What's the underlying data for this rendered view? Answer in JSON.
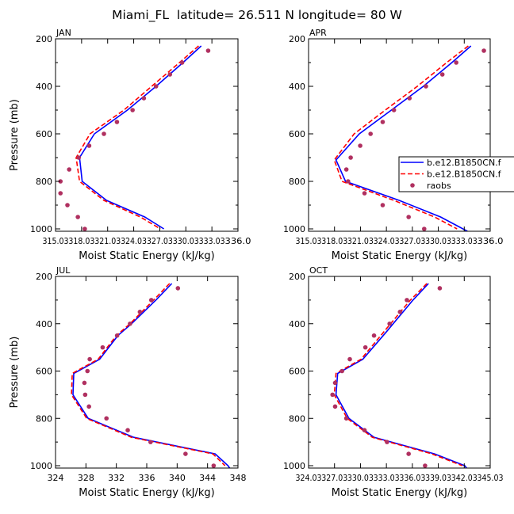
{
  "title": "Miami_FL  latitude= 26.511 N longitude= 80 W",
  "legend": {
    "entries": [
      {
        "label": "b.e12.B1850CN.f",
        "color": "#0000ff",
        "style": "solid"
      },
      {
        "label": "b.e12.B1850CN.f",
        "color": "#ff0000",
        "style": "dashed"
      },
      {
        "label": "raobs",
        "color": "#b03060",
        "style": "marker"
      }
    ]
  },
  "chart_data": [
    {
      "type": "line",
      "title": "JAN",
      "xlabel": "Moist Static Energy (kJ/kg)",
      "ylabel": "Pressure (mb)",
      "xlim": [
        315.03,
        336.03
      ],
      "ylim": [
        1010,
        200
      ],
      "xticks": [
        "315.03",
        "318.03",
        "321.03",
        "324.03",
        "327.03",
        "330.03",
        "333.03",
        "336.0"
      ],
      "yticks": [
        200,
        400,
        600,
        800,
        1000
      ],
      "series": [
        {
          "name": "b.e12.B1850CN.f",
          "color": "#0000ff",
          "dash": false,
          "pressure": [
            230,
            300,
            400,
            500,
            600,
            700,
            800,
            880,
            950,
            1000
          ],
          "values": [
            331.8,
            329.7,
            326.6,
            323.3,
            319.5,
            317.8,
            318.1,
            320.9,
            325.3,
            327.5
          ]
        },
        {
          "name": "b.e12.B1850CN.f",
          "color": "#ff0000",
          "dash": true,
          "pressure": [
            230,
            300,
            400,
            500,
            600,
            700,
            800,
            880,
            950,
            1000
          ],
          "values": [
            331.5,
            329.3,
            326.1,
            322.9,
            319.0,
            317.4,
            317.8,
            320.6,
            324.8,
            327.1
          ]
        },
        {
          "name": "raobs",
          "color": "#b03060",
          "marker": true,
          "pressure": [
            250,
            300,
            350,
            400,
            450,
            500,
            550,
            600,
            650,
            700,
            750,
            800,
            850,
            900,
            950,
            1000
          ],
          "values": [
            332.6,
            329.6,
            328.2,
            326.6,
            325.2,
            323.9,
            322.1,
            320.6,
            318.9,
            317.7,
            316.6,
            315.6,
            315.6,
            316.4,
            317.6,
            318.4
          ]
        }
      ]
    },
    {
      "type": "line",
      "title": "APR",
      "xlabel": "Moist Static Energy (kJ/kg)",
      "ylabel": "Pressure (mb)",
      "xlim": [
        315.03,
        336.03
      ],
      "ylim": [
        1010,
        200
      ],
      "xticks": [
        "315.03",
        "318.03",
        "321.03",
        "324.03",
        "327.03",
        "330.03",
        "333.03",
        "336.0"
      ],
      "yticks": [
        200,
        400,
        600,
        800,
        1000
      ],
      "series": [
        {
          "name": "b.e12.B1850CN.f",
          "color": "#0000ff",
          "dash": false,
          "pressure": [
            230,
            300,
            400,
            500,
            600,
            710,
            800,
            880,
            950,
            1010
          ],
          "values": [
            333.8,
            331.6,
            328.3,
            324.6,
            320.9,
            318.2,
            319.3,
            325.5,
            330.3,
            333.4
          ]
        },
        {
          "name": "b.e12.B1850CN.f",
          "color": "#ff0000",
          "dash": true,
          "pressure": [
            230,
            300,
            400,
            500,
            600,
            710,
            800,
            880,
            950,
            1000
          ],
          "values": [
            333.5,
            331.0,
            327.6,
            323.9,
            320.3,
            318.0,
            318.9,
            324.9,
            329.6,
            332.2
          ]
        },
        {
          "name": "raobs",
          "color": "#b03060",
          "marker": true,
          "pressure": [
            250,
            300,
            350,
            400,
            450,
            500,
            550,
            600,
            650,
            700,
            750,
            800,
            850,
            900,
            950,
            1000
          ],
          "values": [
            335.3,
            332.1,
            330.5,
            328.6,
            326.7,
            324.9,
            323.6,
            322.2,
            321.0,
            319.9,
            319.4,
            319.6,
            321.5,
            323.6,
            326.6,
            328.4
          ]
        }
      ]
    },
    {
      "type": "line",
      "title": "JUL",
      "xlabel": "Moist Static Energy (kJ/kg)",
      "ylabel": "Pressure (mb)",
      "xlim": [
        324,
        348
      ],
      "ylim": [
        1010,
        200
      ],
      "xticks": [
        "324",
        "328",
        "332",
        "336",
        "340",
        "344",
        "348"
      ],
      "yticks": [
        200,
        400,
        600,
        800,
        1000
      ],
      "series": [
        {
          "name": "b.e12.B1850CN.f",
          "color": "#0000ff",
          "dash": false,
          "pressure": [
            230,
            300,
            400,
            450,
            550,
            610,
            700,
            800,
            880,
            950,
            1000,
            1010
          ],
          "values": [
            339.3,
            337.2,
            334.0,
            332.2,
            329.8,
            326.4,
            326.3,
            328.3,
            334.3,
            345.0,
            346.7,
            346.9
          ]
        },
        {
          "name": "b.e12.B1850CN.f",
          "color": "#ff0000",
          "dash": true,
          "pressure": [
            230,
            300,
            400,
            450,
            550,
            610,
            700,
            800,
            880,
            950,
            1000
          ],
          "values": [
            339.0,
            336.9,
            333.8,
            332.0,
            329.6,
            326.2,
            326.1,
            328.1,
            334.0,
            344.7,
            346.3
          ]
        },
        {
          "name": "raobs",
          "color": "#b03060",
          "marker": true,
          "pressure": [
            250,
            300,
            350,
            400,
            450,
            500,
            550,
            600,
            650,
            700,
            750,
            800,
            850,
            900,
            950,
            1000
          ],
          "values": [
            340.1,
            336.6,
            335.1,
            333.8,
            332.1,
            330.2,
            328.5,
            328.2,
            327.8,
            327.9,
            328.4,
            330.7,
            333.5,
            336.5,
            341.1,
            344.8
          ]
        }
      ]
    },
    {
      "type": "line",
      "title": "OCT",
      "xlabel": "Moist Static Energy (kJ/kg)",
      "ylabel": "Pressure (mb)",
      "xlim": [
        324.03,
        345.03
      ],
      "ylim": [
        1010,
        200
      ],
      "xticks": [
        "324.03",
        "327.03",
        "330.03",
        "333.03",
        "336.03",
        "339.03",
        "342.03",
        "345.03"
      ],
      "yticks": [
        200,
        400,
        600,
        800,
        1000
      ],
      "series": [
        {
          "name": "b.e12.B1850CN.f",
          "color": "#0000ff",
          "dash": false,
          "pressure": [
            230,
            300,
            440,
            550,
            610,
            700,
            800,
            880,
            950,
            1000,
            1010
          ],
          "values": [
            337.9,
            336.1,
            332.9,
            330.3,
            327.4,
            327.2,
            328.7,
            331.6,
            338.6,
            342.1,
            342.3
          ]
        },
        {
          "name": "b.e12.B1850CN.f",
          "color": "#ff0000",
          "dash": true,
          "pressure": [
            230,
            300,
            440,
            550,
            610,
            700,
            800,
            880,
            950,
            1000
          ],
          "values": [
            337.7,
            335.8,
            332.6,
            330.1,
            327.2,
            327.0,
            328.5,
            331.4,
            338.3,
            341.8
          ]
        },
        {
          "name": "raobs",
          "color": "#b03060",
          "marker": true,
          "pressure": [
            250,
            300,
            350,
            400,
            450,
            500,
            550,
            600,
            650,
            700,
            750,
            800,
            850,
            900,
            950,
            1000
          ],
          "values": [
            339.2,
            335.4,
            334.6,
            333.4,
            331.6,
            330.6,
            328.8,
            327.9,
            327.1,
            326.8,
            327.1,
            328.4,
            330.5,
            333.1,
            335.6,
            337.5
          ]
        }
      ]
    }
  ]
}
